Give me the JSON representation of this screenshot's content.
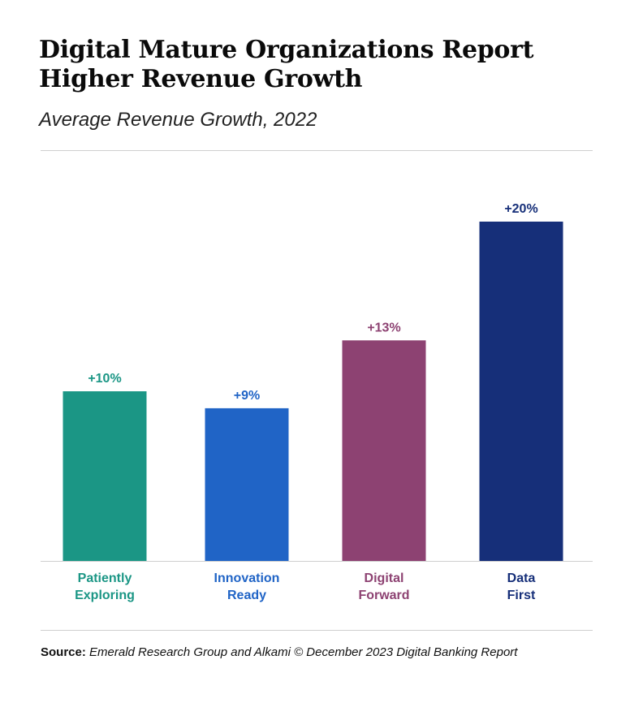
{
  "header": {
    "title_line1": "Digital Mature Organizations Report",
    "title_line2": "Higher Revenue Growth",
    "subtitle": "Average Revenue Growth, 2022"
  },
  "source": {
    "label": "Source:",
    "text": "Emerald Research Group and Alkami © December 2023 Digital Banking Report"
  },
  "chart_data": {
    "type": "bar",
    "title": "Digital Mature Organizations Report Higher Revenue Growth",
    "subtitle": "Average Revenue Growth, 2022",
    "xlabel": "",
    "ylabel": "",
    "ylim": [
      0,
      20
    ],
    "grid": false,
    "categories": [
      [
        "Patiently",
        "Exploring"
      ],
      [
        "Innovation",
        "Ready"
      ],
      [
        "Digital",
        "Forward"
      ],
      [
        "Data",
        "First"
      ]
    ],
    "values": [
      10,
      9,
      13,
      20
    ],
    "data_labels": [
      "+10%",
      "+9%",
      "+13%",
      "+20%"
    ],
    "colors": [
      "#1b9685",
      "#2064c6",
      "#8d4272",
      "#162f79"
    ]
  }
}
